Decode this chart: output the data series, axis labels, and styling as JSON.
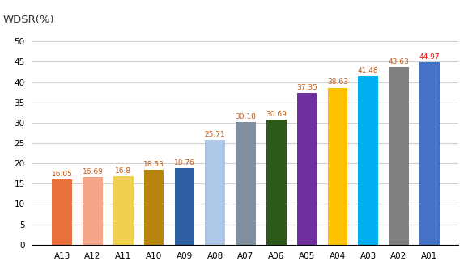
{
  "categories": [
    "A13",
    "A12",
    "A11",
    "A10",
    "A09",
    "A08",
    "A07",
    "A06",
    "A05",
    "A04",
    "A03",
    "A02",
    "A01"
  ],
  "values": [
    16.05,
    16.69,
    16.8,
    18.53,
    18.76,
    25.71,
    30.18,
    30.69,
    37.35,
    38.63,
    41.48,
    43.63,
    44.97
  ],
  "bar_colors": [
    "#e8703a",
    "#f4a58a",
    "#f0d050",
    "#b8860b",
    "#2e5fa3",
    "#aec6e8",
    "#8090a0",
    "#2d5a1b",
    "#7030a0",
    "#ffc000",
    "#00b0f0",
    "#808080",
    "#4472c4"
  ],
  "label_colors": [
    "#c55a11",
    "#c55a11",
    "#c55a11",
    "#c55a11",
    "#c55a11",
    "#c55a11",
    "#c55a11",
    "#c55a11",
    "#c55a11",
    "#c55a11",
    "#c55a11",
    "#c55a11",
    "#ff0000"
  ],
  "ylabel": "WDSR(%)",
  "ylim": [
    0,
    52
  ],
  "yticks": [
    0,
    5,
    10,
    15,
    20,
    25,
    30,
    35,
    40,
    45,
    50
  ],
  "background_color": "#ffffff",
  "grid_color": "#d0d0d0",
  "label_fontsize": 6.5,
  "tick_fontsize": 7.5
}
